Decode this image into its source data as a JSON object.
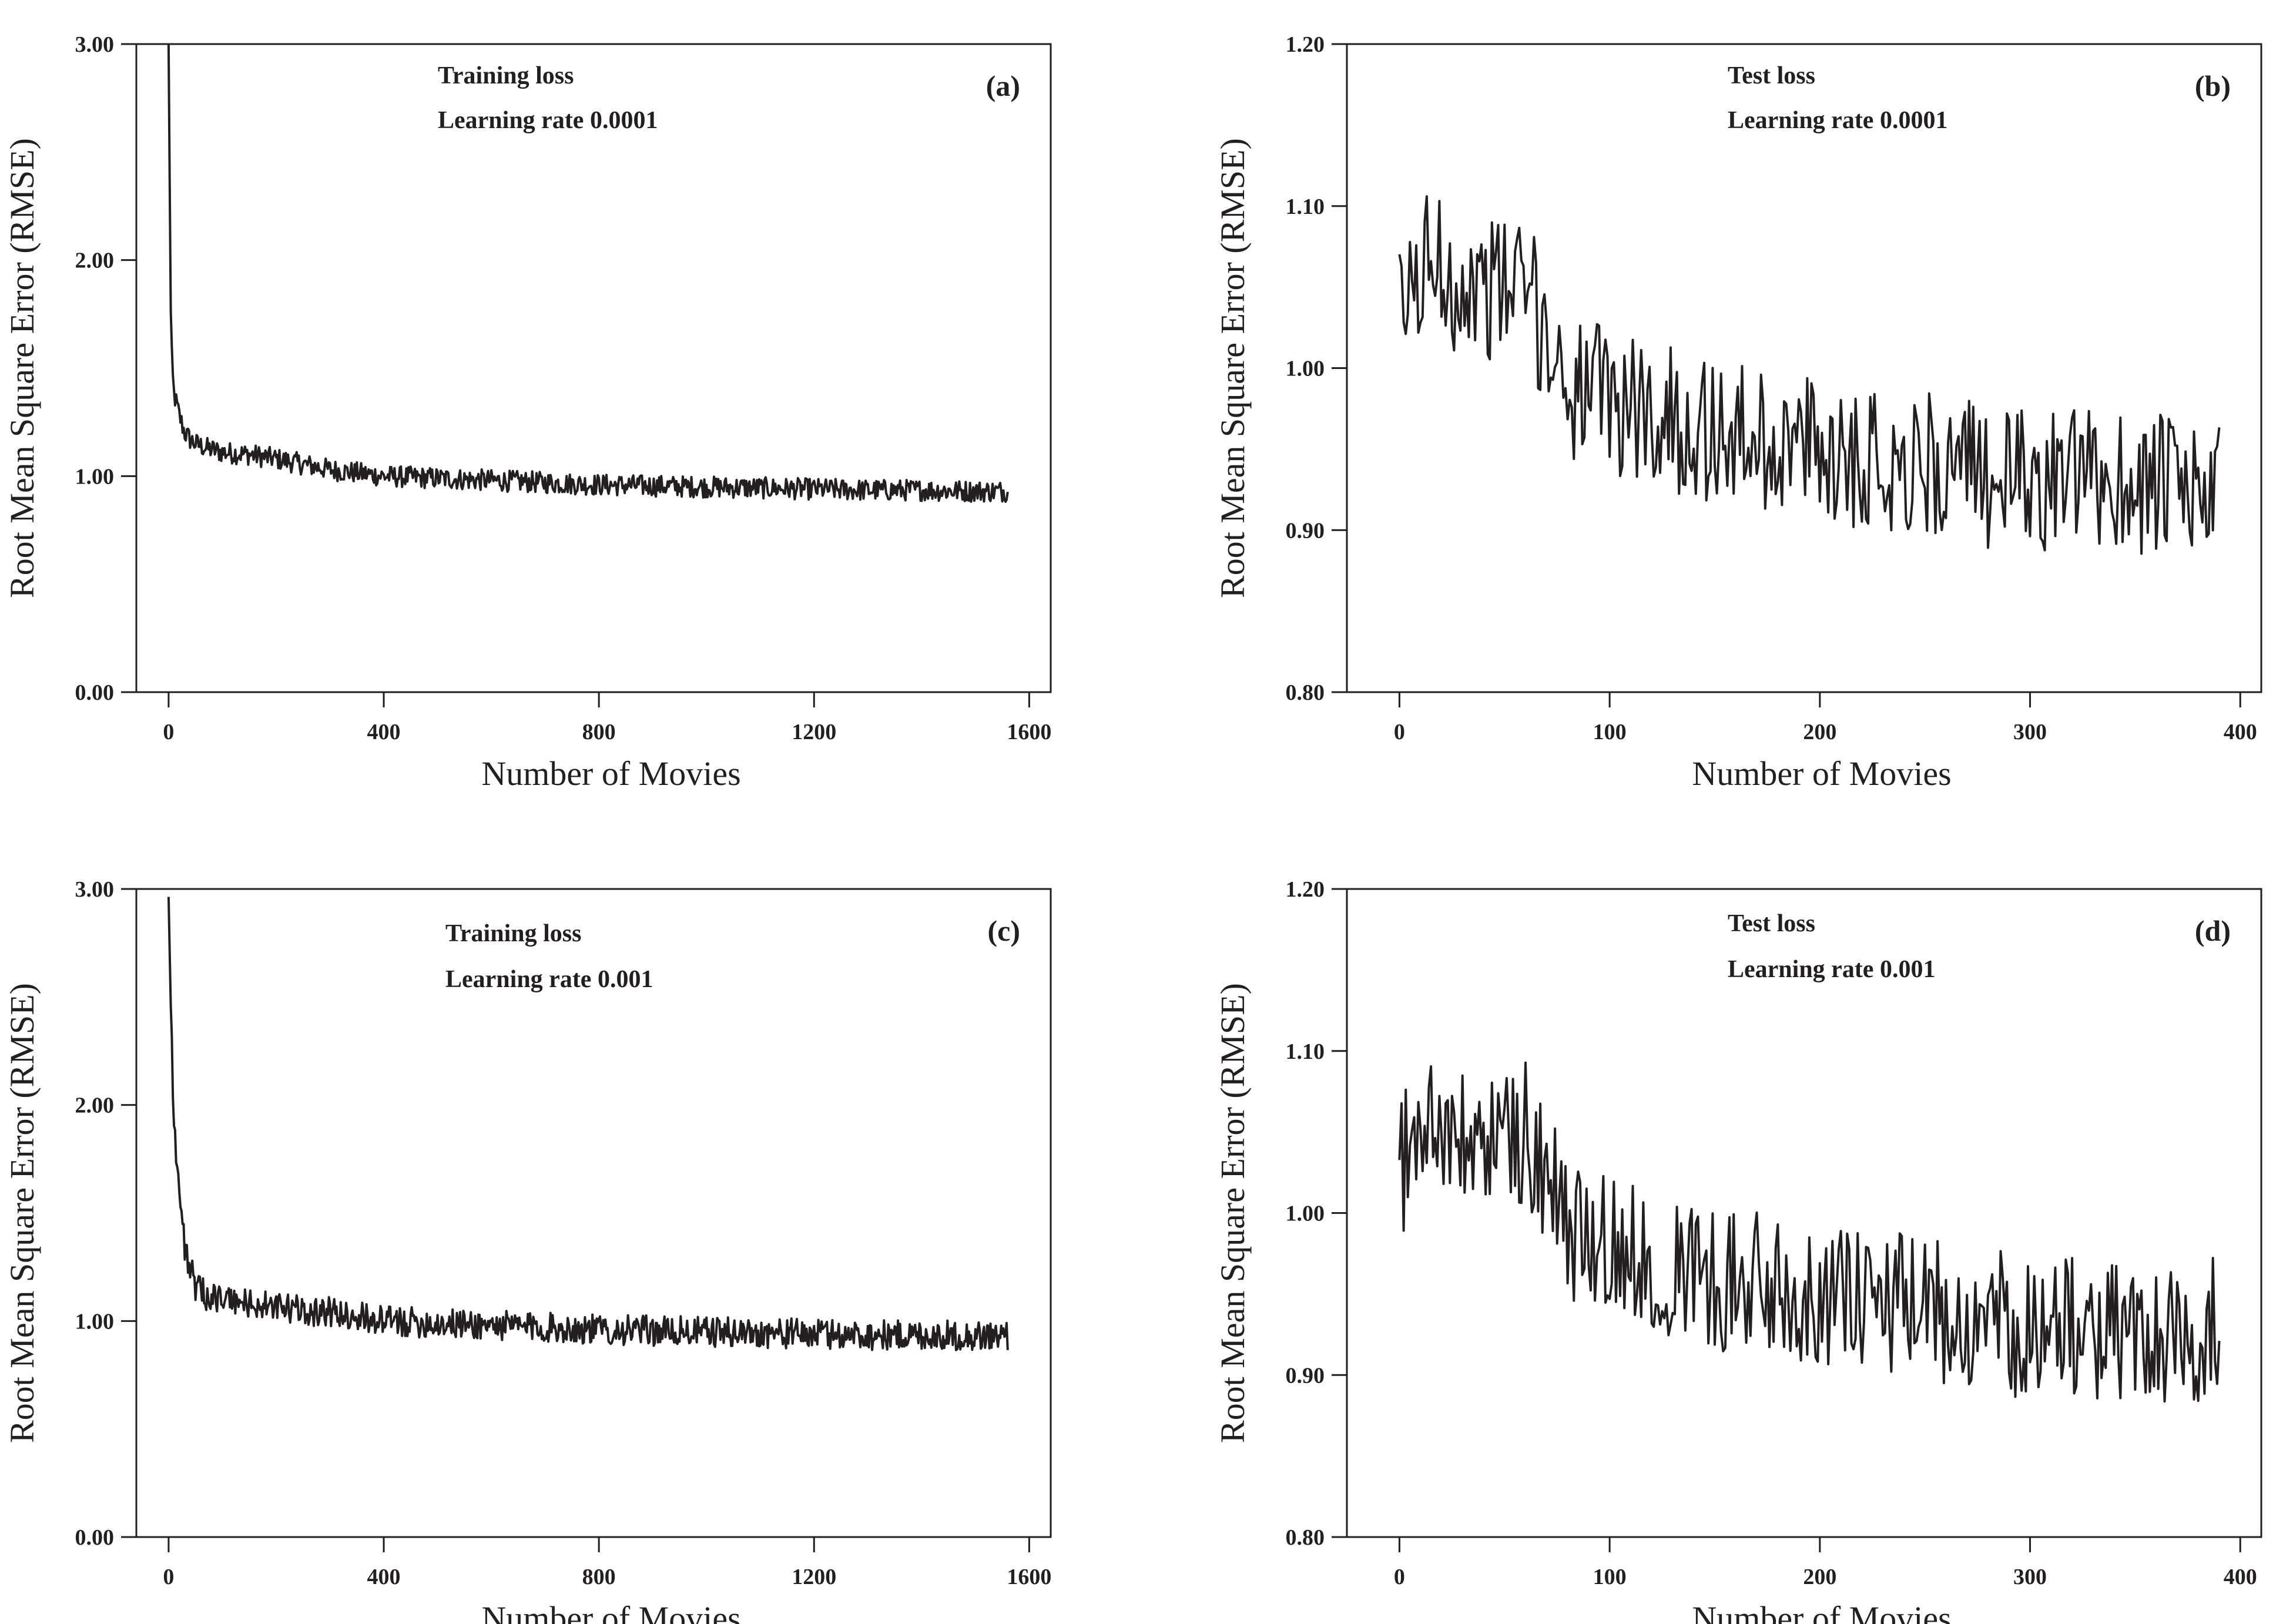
{
  "figure_title": "",
  "chart_data": [
    {
      "type": "line",
      "panel": "(a)",
      "title": "",
      "annotation_line1": "Training loss",
      "annotation_line2": "Learning rate 0.0001",
      "xlabel": "Number of Movies",
      "ylabel": "Root Mean Square Error (RMSE)",
      "xlim": [
        -60,
        1640
      ],
      "ylim": [
        0,
        3
      ],
      "xticks": [
        0,
        400,
        800,
        1200,
        1600
      ],
      "xtick_labels": [
        "0",
        "400",
        "800",
        "1200",
        "1600"
      ],
      "yticks": [
        0,
        1,
        2,
        3
      ],
      "ytick_labels": [
        "0.00",
        "1.00",
        "2.00",
        "3.00"
      ],
      "grid": false,
      "series": [
        {
          "name": "Training loss",
          "color": "#231f20",
          "x": [
            0,
            2,
            4,
            6,
            8,
            10,
            15,
            20,
            30,
            40,
            50,
            70,
            100,
            150,
            200,
            300,
            400,
            500,
            600,
            700,
            800,
            900,
            1000,
            1100,
            1200,
            1300,
            1400,
            1500,
            1560
          ],
          "values": [
            3.0,
            2.4,
            1.75,
            1.55,
            1.45,
            1.38,
            1.33,
            1.28,
            1.2,
            1.17,
            1.15,
            1.13,
            1.11,
            1.1,
            1.08,
            1.03,
            1.0,
            0.99,
            0.98,
            0.97,
            0.96,
            0.955,
            0.95,
            0.945,
            0.94,
            0.935,
            0.935,
            0.93,
            0.93
          ],
          "noise_amplitude": 0.05,
          "noise_period": 2
        }
      ]
    },
    {
      "type": "line",
      "panel": "(b)",
      "title": "",
      "annotation_line1": "Test loss",
      "annotation_line2": "Learning rate 0.0001",
      "xlabel": "Number of Movies",
      "ylabel": "Root Mean Square Error (RMSE)",
      "xlim": [
        -25,
        410
      ],
      "ylim": [
        0.8,
        1.2
      ],
      "xticks": [
        0,
        100,
        200,
        300,
        400
      ],
      "xtick_labels": [
        "0",
        "100",
        "200",
        "300",
        "400"
      ],
      "yticks": [
        0.8,
        0.9,
        1.0,
        1.1,
        1.2
      ],
      "ytick_labels": [
        "0.80",
        "0.90",
        "1.00",
        "1.10",
        "1.20"
      ],
      "grid": false,
      "series": [
        {
          "name": "Test loss",
          "color": "#231f20",
          "x": [
            0,
            15,
            30,
            60,
            80,
            100,
            150,
            200,
            250,
            300,
            350,
            390
          ],
          "values": [
            1.03,
            1.07,
            1.05,
            1.05,
            0.99,
            0.98,
            0.96,
            0.95,
            0.94,
            0.93,
            0.93,
            0.92
          ],
          "noise_amplitude": 0.045,
          "noise_period": 1
        }
      ]
    },
    {
      "type": "line",
      "panel": "(c)",
      "title": "",
      "annotation_line1": "Training loss",
      "annotation_line2": "Learning rate 0.001",
      "xlabel": "Number of Movies",
      "ylabel": "Root Mean Square Error (RMSE)",
      "xlim": [
        -60,
        1640
      ],
      "ylim": [
        0,
        3
      ],
      "xticks": [
        0,
        400,
        800,
        1200,
        1600
      ],
      "xtick_labels": [
        "0",
        "400",
        "800",
        "1200",
        "1600"
      ],
      "yticks": [
        0,
        1,
        2,
        3
      ],
      "ytick_labels": [
        "0.00",
        "1.00",
        "2.00",
        "3.00"
      ],
      "grid": false,
      "series": [
        {
          "name": "Training loss",
          "color": "#231f20",
          "x": [
            0,
            3,
            6,
            10,
            15,
            20,
            25,
            30,
            40,
            50,
            70,
            100,
            200,
            300,
            400,
            500,
            600,
            700,
            800,
            900,
            1000,
            1100,
            1200,
            1300,
            1400,
            1500,
            1560
          ],
          "values": [
            3.0,
            2.6,
            2.3,
            1.9,
            1.75,
            1.6,
            1.45,
            1.35,
            1.25,
            1.15,
            1.12,
            1.1,
            1.06,
            1.04,
            1.0,
            0.99,
            0.98,
            0.97,
            0.96,
            0.955,
            0.95,
            0.945,
            0.94,
            0.935,
            0.935,
            0.93,
            0.93
          ],
          "noise_amplitude": 0.07,
          "noise_period": 2
        }
      ]
    },
    {
      "type": "line",
      "panel": "(d)",
      "title": "",
      "annotation_line1": "Test loss",
      "annotation_line2": "Learning rate 0.001",
      "xlabel": "Number of Movies",
      "ylabel": "Root Mean Square Error (RMSE)",
      "xlim": [
        -25,
        410
      ],
      "ylim": [
        0.8,
        1.2
      ],
      "xticks": [
        0,
        100,
        200,
        300,
        400
      ],
      "xtick_labels": [
        "0",
        "100",
        "200",
        "300",
        "400"
      ],
      "yticks": [
        0.8,
        0.9,
        1.0,
        1.1,
        1.2
      ],
      "ytick_labels": [
        "0.80",
        "0.90",
        "1.00",
        "1.10",
        "1.20"
      ],
      "grid": false,
      "series": [
        {
          "name": "Test loss",
          "color": "#231f20",
          "x": [
            0,
            15,
            30,
            60,
            80,
            100,
            150,
            200,
            250,
            300,
            350,
            390
          ],
          "values": [
            1.03,
            1.06,
            1.04,
            1.05,
            0.99,
            0.98,
            0.96,
            0.95,
            0.94,
            0.93,
            0.925,
            0.93
          ],
          "noise_amplitude": 0.045,
          "noise_period": 1
        }
      ]
    }
  ]
}
